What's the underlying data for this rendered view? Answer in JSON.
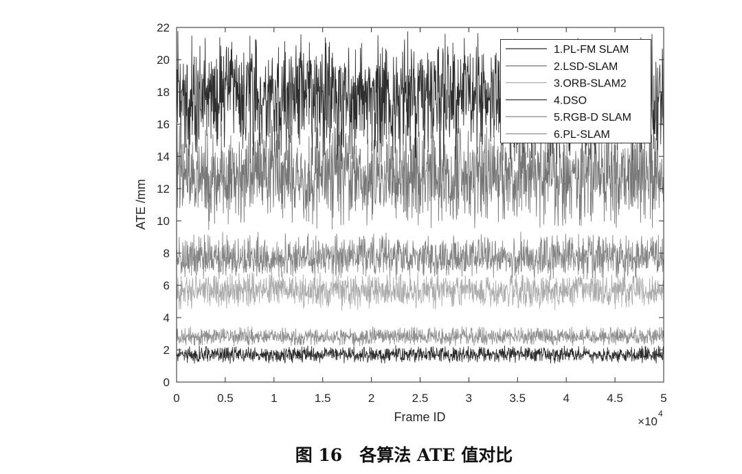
{
  "caption": "图 16　各算法 ATE 值对比",
  "chart_data": {
    "type": "line",
    "title": "",
    "xlabel": "Frame ID",
    "ylabel": "ATE /mm",
    "x_exponent": {
      "base": "×10",
      "power": "4"
    },
    "xlim": [
      0,
      5
    ],
    "ylim": [
      0,
      22
    ],
    "x_ticks": [
      "0",
      "0.5",
      "1",
      "1.5",
      "2",
      "2.5",
      "3",
      "3.5",
      "4",
      "4.5",
      "5"
    ],
    "y_ticks": [
      "0",
      "2",
      "4",
      "6",
      "8",
      "10",
      "12",
      "14",
      "16",
      "18",
      "20",
      "22"
    ],
    "grid": false,
    "legend_position": "top-right",
    "series": [
      {
        "name": "1.PL-FM SLAM",
        "color": "#2a2a2a",
        "ate_typical": 1.7,
        "ate_range": [
          1.1,
          2.3
        ]
      },
      {
        "name": "2.LSD-SLAM",
        "color": "#767676",
        "ate_typical": 12.8,
        "ate_range": [
          9.3,
          16.4
        ]
      },
      {
        "name": "3.ORB-SLAM2",
        "color": "#ababab",
        "ate_typical": 5.7,
        "ate_range": [
          4.4,
          6.9
        ]
      },
      {
        "name": "4.DSO",
        "color": "#2e2e2e",
        "ate_typical": 17.8,
        "ate_range": [
          13.2,
          21.9
        ]
      },
      {
        "name": "5.RGB-D SLAM",
        "color": "#848484",
        "ate_typical": 7.7,
        "ate_range": [
          6.3,
          9.4
        ]
      },
      {
        "name": "6.PL-SLAM",
        "color": "#8f8f8f",
        "ate_typical": 2.8,
        "ate_range": [
          2.2,
          3.5
        ]
      }
    ]
  }
}
